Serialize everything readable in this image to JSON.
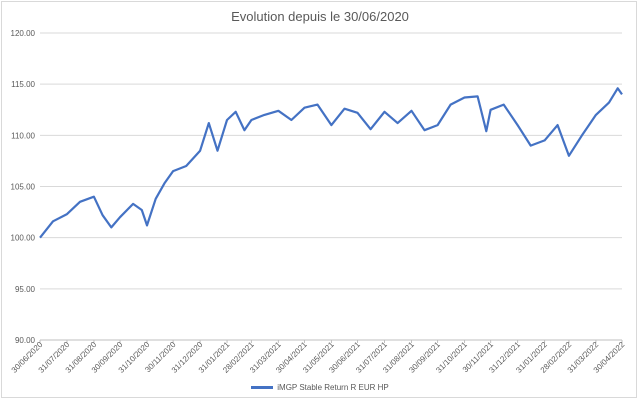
{
  "chart_data": {
    "type": "line",
    "title": "Evolution depuis le 30/06/2020",
    "xlabel": "",
    "ylabel": "",
    "ylim": [
      90,
      120
    ],
    "yticks": [
      "120.00",
      "115.00",
      "110.00",
      "105.00",
      "100.00",
      "95.00",
      "90.00"
    ],
    "ytick_values": [
      120,
      115,
      110,
      105,
      100,
      95,
      90
    ],
    "xticks": [
      "30/06/2020",
      "31/07/2020",
      "31/08/2020",
      "30/09/2020",
      "31/10/2020",
      "30/11/2020",
      "31/12/2020",
      "31/01/2021",
      "28/02/2021",
      "31/03/2021",
      "30/04/2021",
      "31/05/2021",
      "30/06/2021",
      "31/07/2021",
      "31/08/2021",
      "30/09/2021",
      "31/10/2021",
      "30/11/2021",
      "31/12/2021",
      "31/01/2022",
      "28/02/2022",
      "31/03/2022",
      "30/04/2022"
    ],
    "grid": true,
    "legend_position": "bottom",
    "series": [
      {
        "name": "iMGP Stable Return R EUR HP",
        "color": "#4472c4",
        "x": [
          "30/06/2020",
          "15/07/2020",
          "31/07/2020",
          "15/08/2020",
          "31/08/2020",
          "10/09/2020",
          "20/09/2020",
          "30/09/2020",
          "15/10/2020",
          "25/10/2020",
          "31/10/2020",
          "10/11/2020",
          "20/11/2020",
          "30/11/2020",
          "15/12/2020",
          "31/12/2020",
          "10/01/2021",
          "20/01/2021",
          "31/01/2021",
          "10/02/2021",
          "20/02/2021",
          "28/02/2021",
          "15/03/2021",
          "31/03/2021",
          "15/04/2021",
          "30/04/2021",
          "15/05/2021",
          "31/05/2021",
          "15/06/2021",
          "30/06/2021",
          "15/07/2021",
          "31/07/2021",
          "15/08/2021",
          "31/08/2021",
          "15/09/2021",
          "30/09/2021",
          "15/10/2021",
          "31/10/2021",
          "15/11/2021",
          "25/11/2021",
          "30/11/2021",
          "15/12/2021",
          "31/12/2021",
          "15/01/2022",
          "31/01/2022",
          "15/02/2022",
          "28/02/2022",
          "15/03/2022",
          "31/03/2022",
          "15/04/2022",
          "25/04/2022",
          "30/04/2022"
        ],
        "values": [
          100.0,
          101.6,
          102.3,
          103.5,
          104.0,
          102.2,
          101.0,
          102.0,
          103.3,
          102.7,
          101.2,
          103.8,
          105.3,
          106.5,
          107.0,
          108.5,
          111.2,
          108.5,
          111.5,
          112.3,
          110.5,
          111.5,
          112.0,
          112.4,
          111.5,
          112.7,
          113.0,
          111.0,
          112.6,
          112.2,
          110.6,
          112.3,
          111.2,
          112.4,
          110.5,
          111.0,
          113.0,
          113.7,
          113.8,
          110.4,
          112.5,
          113.0,
          111.0,
          109.0,
          109.5,
          111.0,
          108.0,
          110.0,
          112.0,
          113.2,
          114.6,
          114.0
        ]
      }
    ]
  }
}
